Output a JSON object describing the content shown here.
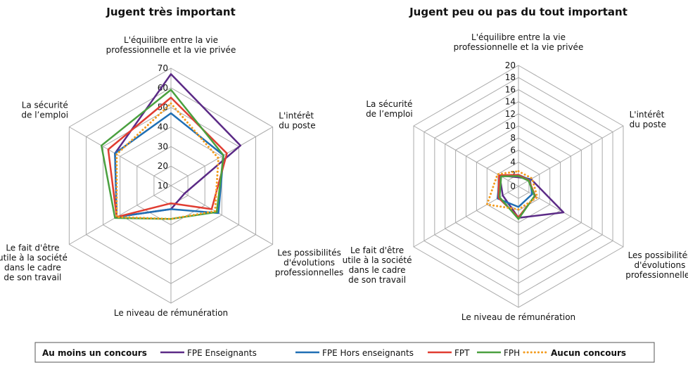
{
  "legend_title": "Au moins un concours",
  "chart_data": [
    {
      "type": "radar",
      "title": "Jugent très important",
      "categories": [
        "L'équilibre entre la vie\nprofessionnelle et la vie privée",
        "L'intérêt\ndu poste",
        "Les possibilités\nd'évolutions\nprofessionnelles",
        "Le niveau de rémunération",
        "Le fait d'être\nutile à la société\ndans le cadre\nde son travail",
        "La sécurité\nde l’emploi"
      ],
      "ylim": [
        10,
        70
      ],
      "yticks": [
        10,
        20,
        30,
        40,
        50,
        60,
        70
      ],
      "series": [
        {
          "name": "FPE Enseignants",
          "color": "#5b2a86",
          "values": [
            67,
            51,
            18,
            22,
            42,
            43
          ]
        },
        {
          "name": "FPE Hors enseignants",
          "color": "#1f6fb4",
          "values": [
            47,
            41,
            38,
            22,
            42,
            43
          ]
        },
        {
          "name": "FPT",
          "color": "#e03c31",
          "values": [
            55,
            43,
            34,
            19,
            42,
            47
          ]
        },
        {
          "name": "FPH",
          "color": "#4aa03f",
          "values": [
            59,
            41,
            37,
            27,
            43,
            51
          ]
        },
        {
          "name": "Aucun concours",
          "color": "#f39c1f",
          "line_style": "dotted",
          "values": [
            52,
            38,
            36,
            27,
            42,
            42
          ]
        }
      ]
    },
    {
      "type": "radar",
      "title": "Jugent peu ou pas du tout important",
      "categories": [
        "L'équilibre entre la vie\nprofessionnelle et la vie privée",
        "L'intérêt\ndu poste",
        "Les possibilités\nd'évolutions\nprofessionnelles",
        "Le niveau de rémunération",
        "Le fait d'être\nutile à la société\ndans le cadre\nde son travail",
        "La sécurité\nde l’emploi"
      ],
      "ylim": [
        0,
        20
      ],
      "yticks": [
        0,
        2,
        4,
        6,
        8,
        10,
        12,
        14,
        16,
        18,
        20
      ],
      "series": [
        {
          "name": "FPE Enseignants",
          "color": "#5b2a86",
          "values": [
            1.5,
            2.4,
            8.6,
            5.2,
            3.0,
            3.6
          ]
        },
        {
          "name": "FPE Hors enseignants",
          "color": "#1f6fb4",
          "values": [
            1.9,
            2.2,
            2.6,
            3.4,
            4.0,
            3.5
          ]
        },
        {
          "name": "FPT",
          "color": "#e03c31",
          "values": [
            1.9,
            2.0,
            3.2,
            5.1,
            3.8,
            3.7
          ]
        },
        {
          "name": "FPH",
          "color": "#4aa03f",
          "values": [
            1.7,
            1.9,
            3.1,
            5.4,
            3.6,
            3.3
          ]
        },
        {
          "name": "Aucun concours",
          "color": "#f39c1f",
          "line_style": "dotted",
          "values": [
            2.5,
            2.6,
            3.6,
            3.8,
            6.0,
            4.0
          ]
        }
      ]
    }
  ]
}
